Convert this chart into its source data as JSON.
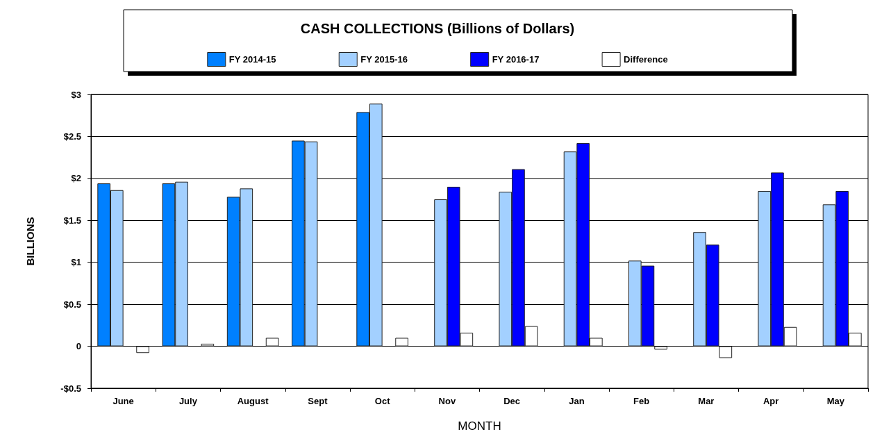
{
  "chart_data": {
    "type": "bar",
    "title": "CASH COLLECTIONS (Billions of Dollars)",
    "xlabel": "MONTH",
    "ylabel": "BILLIONS",
    "categories": [
      "June",
      "July",
      "August",
      "Sept",
      "Oct",
      "Nov",
      "Dec",
      "Jan",
      "Feb",
      "Mar",
      "Apr",
      "May"
    ],
    "series": [
      {
        "name": "FY 2014-15",
        "color": "#0080ff",
        "values": [
          1.94,
          1.94,
          1.78,
          2.45,
          2.79,
          null,
          null,
          null,
          null,
          null,
          null,
          null
        ]
      },
      {
        "name": "FY 2015-16",
        "color": "#a3d0ff",
        "values": [
          1.86,
          1.96,
          1.88,
          2.44,
          2.89,
          1.75,
          1.84,
          2.32,
          1.02,
          1.36,
          1.85,
          1.69
        ]
      },
      {
        "name": "FY 2016-17",
        "color": "#0000ff",
        "values": [
          null,
          null,
          null,
          null,
          null,
          1.9,
          2.11,
          2.42,
          0.96,
          1.21,
          2.07,
          1.85
        ]
      },
      {
        "name": "Difference",
        "color": "#ffffff",
        "values": [
          -0.08,
          0.03,
          0.1,
          null,
          0.1,
          0.16,
          0.24,
          0.1,
          -0.04,
          -0.14,
          0.23,
          0.16
        ]
      }
    ],
    "ylim": [
      -0.5,
      3
    ],
    "yticks": [
      {
        "value": -0.5,
        "label": "-$0.5"
      },
      {
        "value": 0,
        "label": "0"
      },
      {
        "value": 0.5,
        "label": "$0.5"
      },
      {
        "value": 1,
        "label": "$1"
      },
      {
        "value": 1.5,
        "label": "$1.5"
      },
      {
        "value": 2,
        "label": "$2"
      },
      {
        "value": 2.5,
        "label": "$2.5"
      },
      {
        "value": 3,
        "label": "$3"
      }
    ],
    "grid": "y",
    "legend": "top"
  }
}
